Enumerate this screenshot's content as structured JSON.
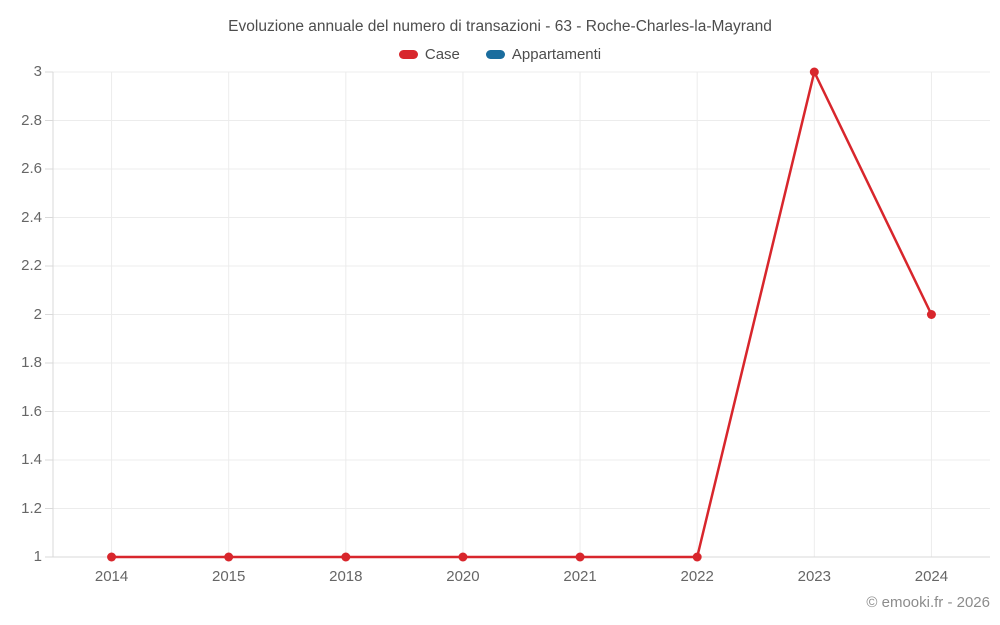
{
  "title": "Evoluzione annuale del numero di transazioni - 63 - Roche-Charles-la-Mayrand",
  "legend": {
    "items": [
      {
        "label": "Case",
        "color": "#d8262c"
      },
      {
        "label": "Appartamenti",
        "color": "#1a6d9e"
      }
    ]
  },
  "footer": {
    "credit": "© emooki.fr - 2026"
  },
  "colors": {
    "grid": "#ececec",
    "axis": "#d9d9d9",
    "tick_text": "#666666",
    "title_text": "#4d4d4d"
  },
  "chart_data": {
    "type": "line",
    "title": "Evoluzione annuale del numero di transazioni - 63 - Roche-Charles-la-Mayrand",
    "categories": [
      "2014",
      "2015",
      "2018",
      "2020",
      "2021",
      "2022",
      "2023",
      "2024"
    ],
    "series": [
      {
        "name": "Case",
        "color": "#d8262c",
        "values": [
          1,
          1,
          1,
          1,
          1,
          1,
          3,
          2
        ]
      },
      {
        "name": "Appartamenti",
        "color": "#1a6d9e",
        "values": []
      }
    ],
    "xlabel": "",
    "ylabel": "",
    "ylim": [
      1,
      3
    ],
    "yticks": [
      1,
      1.2,
      1.4,
      1.6,
      1.8,
      2,
      2.2,
      2.4,
      2.6,
      2.8,
      3
    ],
    "grid": true,
    "legend_position": "top-center",
    "marker_radius": 4.5,
    "line_width": 2.5
  }
}
